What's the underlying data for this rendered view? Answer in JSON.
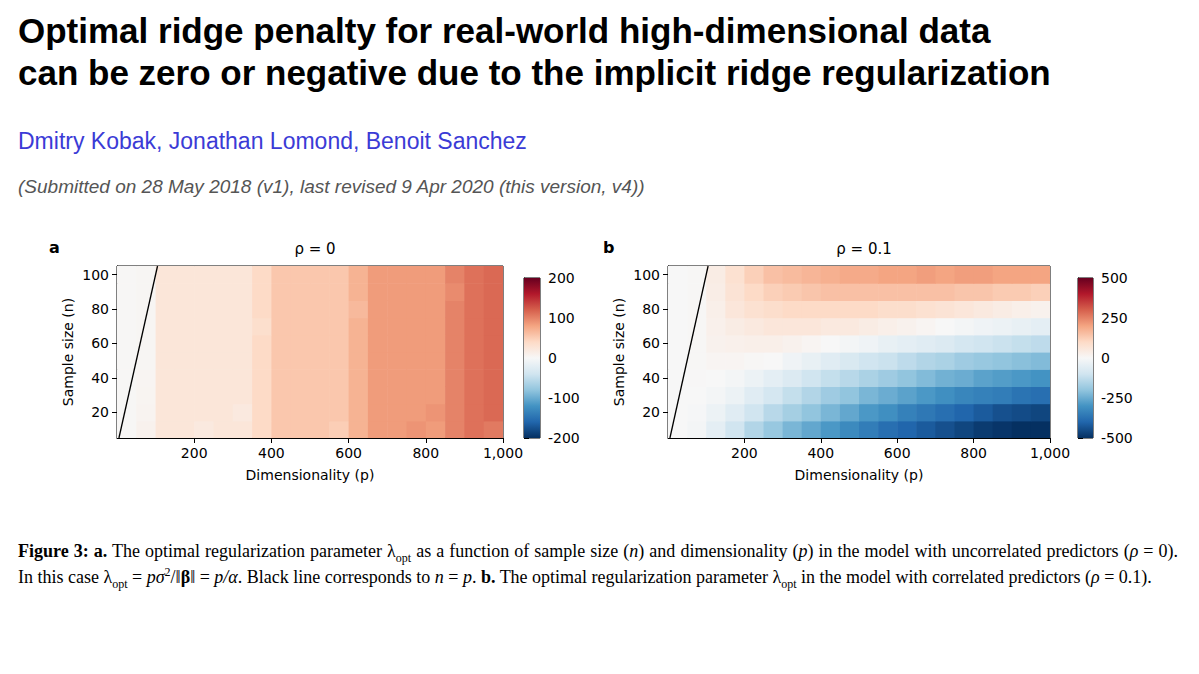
{
  "header": {
    "title": [
      "Optimal ridge penalty for real-world high-dimensional data",
      "can be zero or negative due to the implicit ridge regularization"
    ],
    "authors": "Dmitry Kobak, Jonathan Lomond, Benoit Sanchez",
    "submission": "(Submitted on 28 May 2018 (v1), last revised 9 Apr 2020 (this version, v4))"
  },
  "chart_data": [
    {
      "type": "heatmap",
      "panel": "a",
      "title": "ρ = 0",
      "x_label": "Dimensionality (p)",
      "y_label": "Sample size (n)",
      "xlim": [
        0,
        1000
      ],
      "xticks": [
        200,
        400,
        600,
        800,
        1000
      ],
      "ylim": [
        5,
        105
      ],
      "yticks": [
        20,
        40,
        60,
        80,
        100
      ],
      "x_bins": [
        0,
        50,
        100,
        150,
        200,
        250,
        300,
        350,
        400,
        450,
        500,
        550,
        600,
        650,
        700,
        750,
        800,
        850,
        900,
        950,
        1000
      ],
      "y_bins": [
        5,
        15,
        25,
        35,
        45,
        55,
        65,
        75,
        85,
        95,
        105
      ],
      "cells": [
        [
          2,
          8,
          25,
          25,
          20,
          25,
          25,
          40,
          55,
          55,
          55,
          50,
          70,
          85,
          85,
          90,
          85,
          100,
          110,
          105
        ],
        [
          2,
          6,
          25,
          25,
          25,
          25,
          20,
          40,
          55,
          55,
          55,
          55,
          70,
          85,
          85,
          85,
          90,
          100,
          110,
          115
        ],
        [
          2,
          5,
          25,
          25,
          25,
          25,
          25,
          40,
          55,
          55,
          55,
          55,
          70,
          85,
          85,
          85,
          85,
          100,
          110,
          115
        ],
        [
          2,
          4,
          25,
          25,
          25,
          25,
          25,
          40,
          55,
          55,
          55,
          55,
          70,
          85,
          85,
          85,
          85,
          100,
          110,
          115
        ],
        [
          2,
          3,
          25,
          25,
          25,
          25,
          25,
          40,
          55,
          55,
          55,
          55,
          70,
          85,
          85,
          85,
          85,
          100,
          110,
          115
        ],
        [
          2,
          3,
          25,
          25,
          25,
          25,
          25,
          40,
          55,
          55,
          55,
          55,
          70,
          85,
          85,
          85,
          85,
          100,
          110,
          115
        ],
        [
          2,
          3,
          25,
          25,
          25,
          25,
          25,
          35,
          55,
          55,
          55,
          55,
          70,
          85,
          85,
          85,
          85,
          100,
          110,
          115
        ],
        [
          2,
          3,
          25,
          25,
          25,
          25,
          25,
          40,
          55,
          55,
          55,
          55,
          65,
          85,
          85,
          85,
          85,
          100,
          110,
          115
        ],
        [
          2,
          3,
          25,
          25,
          25,
          25,
          25,
          40,
          55,
          55,
          55,
          55,
          70,
          85,
          85,
          85,
          85,
          95,
          110,
          115
        ],
        [
          2,
          3,
          25,
          25,
          25,
          25,
          25,
          40,
          55,
          55,
          55,
          55,
          70,
          85,
          85,
          85,
          85,
          100,
          110,
          115
        ]
      ],
      "colorbar": {
        "range": [
          -200,
          200
        ],
        "ticks": [
          -200,
          -100,
          0,
          100,
          200
        ]
      },
      "line": {
        "x": [
          5,
          105
        ],
        "y": [
          5,
          105
        ],
        "color": "#000000"
      }
    },
    {
      "type": "heatmap",
      "panel": "b",
      "title": "ρ = 0.1",
      "x_label": "Dimensionality (p)",
      "y_label": "Sample size (n)",
      "xlim": [
        0,
        1000
      ],
      "xticks": [
        200,
        400,
        600,
        800,
        1000
      ],
      "ylim": [
        5,
        105
      ],
      "yticks": [
        20,
        40,
        60,
        80,
        100
      ],
      "x_bins": [
        0,
        50,
        100,
        150,
        200,
        250,
        300,
        350,
        400,
        450,
        500,
        550,
        600,
        650,
        700,
        750,
        800,
        850,
        900,
        950,
        1000
      ],
      "y_bins": [
        5,
        15,
        25,
        35,
        45,
        55,
        65,
        75,
        85,
        95,
        105
      ],
      "cells": [
        [
          0,
          -10,
          -50,
          -100,
          -150,
          -190,
          -230,
          -260,
          -290,
          -320,
          -350,
          -380,
          -400,
          -420,
          -440,
          -460,
          -480,
          -490,
          -500,
          -500
        ],
        [
          0,
          -5,
          -30,
          -60,
          -100,
          -140,
          -170,
          -200,
          -230,
          -260,
          -290,
          -310,
          -340,
          -360,
          -380,
          -400,
          -420,
          -440,
          -450,
          -460
        ],
        [
          0,
          0,
          -10,
          -30,
          -60,
          -90,
          -120,
          -150,
          -180,
          -200,
          -230,
          -250,
          -270,
          -290,
          -310,
          -330,
          -340,
          -350,
          -370,
          -380
        ],
        [
          0,
          2,
          0,
          -10,
          -30,
          -50,
          -70,
          -100,
          -120,
          -140,
          -160,
          -180,
          -200,
          -220,
          -240,
          -250,
          -270,
          -280,
          -290,
          -300
        ],
        [
          0,
          5,
          10,
          10,
          5,
          0,
          -20,
          -40,
          -60,
          -80,
          -100,
          -110,
          -130,
          -150,
          -160,
          -180,
          -190,
          -200,
          -210,
          -220
        ],
        [
          0,
          5,
          20,
          25,
          30,
          30,
          20,
          10,
          0,
          -10,
          -20,
          -40,
          -50,
          -60,
          -70,
          -90,
          -100,
          -110,
          -120,
          -130
        ],
        [
          0,
          5,
          25,
          40,
          50,
          60,
          60,
          60,
          50,
          50,
          40,
          30,
          20,
          10,
          0,
          -10,
          -20,
          -30,
          -40,
          -50
        ],
        [
          0,
          5,
          30,
          60,
          80,
          90,
          100,
          100,
          100,
          100,
          100,
          90,
          90,
          80,
          70,
          60,
          50,
          40,
          30,
          20
        ],
        [
          0,
          5,
          35,
          70,
          100,
          120,
          130,
          140,
          150,
          150,
          150,
          150,
          150,
          150,
          150,
          140,
          140,
          130,
          130,
          120
        ],
        [
          0,
          5,
          40,
          80,
          120,
          150,
          160,
          170,
          180,
          190,
          190,
          200,
          200,
          210,
          200,
          210,
          210,
          200,
          200,
          200
        ]
      ],
      "colorbar": {
        "range": [
          -500,
          500
        ],
        "ticks": [
          -500,
          -250,
          0,
          250,
          500
        ]
      },
      "line": {
        "x": [
          5,
          105
        ],
        "y": [
          5,
          105
        ],
        "color": "#000000"
      }
    }
  ],
  "caption": [
    {
      "text": "Figure 3:",
      "format": "bold"
    },
    {
      "text": " "
    },
    {
      "text": "a.",
      "format": "bold"
    },
    {
      "text": " The optimal regularization parameter λ"
    },
    {
      "text": "opt",
      "format": "sub"
    },
    {
      "text": " as a function of sample size ("
    },
    {
      "text": "n",
      "format": "italic"
    },
    {
      "text": ") and dimensionality ("
    },
    {
      "text": "p",
      "format": "italic"
    },
    {
      "text": ") in the model with uncorrelated predictors ("
    },
    {
      "text": "ρ",
      "format": "italic"
    },
    {
      "text": " = 0). In this case λ"
    },
    {
      "text": "opt",
      "format": "sub"
    },
    {
      "text": " = "
    },
    {
      "text": "pσ",
      "format": "italic"
    },
    {
      "text": "2",
      "format": "sup"
    },
    {
      "text": "/‖"
    },
    {
      "text": "β",
      "format": "bold"
    },
    {
      "text": "‖ = "
    },
    {
      "text": "p/α",
      "format": "italic"
    },
    {
      "text": ". Black line corresponds to "
    },
    {
      "text": "n",
      "format": "italic"
    },
    {
      "text": " = "
    },
    {
      "text": "p",
      "format": "italic"
    },
    {
      "text": ". "
    },
    {
      "text": "b.",
      "format": "bold"
    },
    {
      "text": " The optimal regularization parameter λ"
    },
    {
      "text": "opt",
      "format": "sub"
    },
    {
      "text": " in the model with correlated predictors ("
    },
    {
      "text": "ρ",
      "format": "italic"
    },
    {
      "text": " = 0.1)."
    }
  ]
}
